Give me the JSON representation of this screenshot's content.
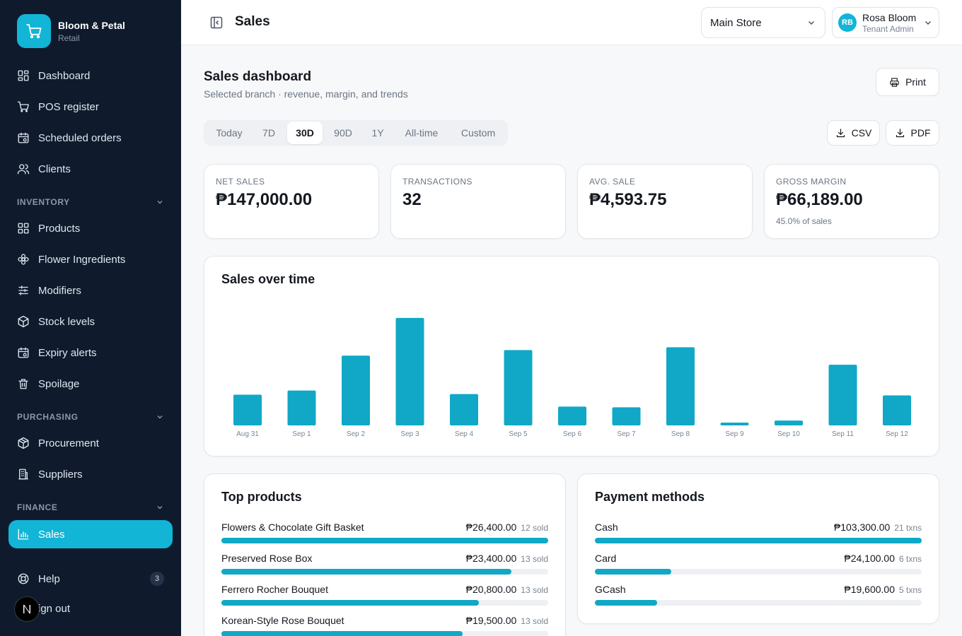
{
  "brand": {
    "name": "Bloom & Petal",
    "subtitle": "Retail",
    "logo_icon": "cart-icon"
  },
  "colors": {
    "sidebar_bg": "#0f1b2d",
    "accent": "#12b5d6",
    "bar": "#10a8c6"
  },
  "sidebar": {
    "items": [
      {
        "label": "Dashboard",
        "icon": "dashboard-icon"
      },
      {
        "label": "POS register",
        "icon": "cart-icon"
      },
      {
        "label": "Scheduled orders",
        "icon": "calendar-icon"
      },
      {
        "label": "Clients",
        "icon": "users-icon"
      }
    ],
    "sections": [
      {
        "label": "INVENTORY",
        "items": [
          {
            "label": "Products",
            "icon": "grid-icon"
          },
          {
            "label": "Flower Ingredients",
            "icon": "flower-icon"
          },
          {
            "label": "Modifiers",
            "icon": "sliders-icon"
          },
          {
            "label": "Stock levels",
            "icon": "box-icon"
          },
          {
            "label": "Expiry alerts",
            "icon": "calendar-clock-icon"
          },
          {
            "label": "Spoilage",
            "icon": "trash-icon"
          }
        ]
      },
      {
        "label": "PURCHASING",
        "items": [
          {
            "label": "Procurement",
            "icon": "package-icon"
          },
          {
            "label": "Suppliers",
            "icon": "building-icon"
          }
        ]
      },
      {
        "label": "FINANCE",
        "items": [
          {
            "label": "Sales",
            "icon": "bar-chart-icon",
            "active": true
          }
        ]
      }
    ],
    "help": {
      "label": "Help",
      "badge": "3",
      "icon": "lifebuoy-icon"
    },
    "signout": {
      "label": "Sign out",
      "visible_label": "ign out"
    }
  },
  "topbar": {
    "title": "Sales",
    "store": "Main Store",
    "user": {
      "initials": "RB",
      "name": "Rosa Bloom",
      "role": "Tenant Admin"
    }
  },
  "dashboard": {
    "title": "Sales dashboard",
    "subtitle": "Selected branch · revenue, margin, and trends",
    "print_label": "Print",
    "csv_label": "CSV",
    "pdf_label": "PDF",
    "ranges": [
      "Today",
      "7D",
      "30D",
      "90D",
      "1Y",
      "All-time",
      "Custom"
    ],
    "active_range": "30D"
  },
  "kpis": [
    {
      "label": "NET SALES",
      "value": "₱147,000.00",
      "note": ""
    },
    {
      "label": "TRANSACTIONS",
      "value": "32",
      "note": ""
    },
    {
      "label": "AVG. SALE",
      "value": "₱4,593.75",
      "note": ""
    },
    {
      "label": "GROSS MARGIN",
      "value": "₱66,189.00",
      "note": "45.0% of sales"
    }
  ],
  "sales_chart": {
    "title": "Sales over time"
  },
  "chart_data": {
    "type": "bar",
    "title": "Sales over time",
    "categories": [
      "Aug 31",
      "Sep 1",
      "Sep 2",
      "Sep 3",
      "Sep 4",
      "Sep 5",
      "Sep 6",
      "Sep 7",
      "Sep 8",
      "Sep 9",
      "Sep 10",
      "Sep 11",
      "Sep 12"
    ],
    "values": [
      4400,
      5000,
      10000,
      15400,
      4500,
      10800,
      2700,
      2600,
      11200,
      400,
      700,
      8700,
      4300
    ],
    "ylim": [
      0,
      16000
    ],
    "grid": false,
    "xlabel": "",
    "ylabel": ""
  },
  "top_products": {
    "title": "Top products",
    "items": [
      {
        "name": "Flowers & Chocolate Gift Basket",
        "amount": "₱26,400.00",
        "sold": "12 sold",
        "value": 26400
      },
      {
        "name": "Preserved Rose Box",
        "amount": "₱23,400.00",
        "sold": "13 sold",
        "value": 23400
      },
      {
        "name": "Ferrero Rocher Bouquet",
        "amount": "₱20,800.00",
        "sold": "13 sold",
        "value": 20800
      },
      {
        "name": "Korean-Style Rose Bouquet",
        "amount": "₱19,500.00",
        "sold": "13 sold",
        "value": 19500
      }
    ]
  },
  "payment_methods": {
    "title": "Payment methods",
    "items": [
      {
        "name": "Cash",
        "amount": "₱103,300.00",
        "txns": "21 txns",
        "value": 103300
      },
      {
        "name": "Card",
        "amount": "₱24,100.00",
        "txns": "6 txns",
        "value": 24100
      },
      {
        "name": "GCash",
        "amount": "₱19,600.00",
        "txns": "5 txns",
        "value": 19600
      }
    ]
  }
}
